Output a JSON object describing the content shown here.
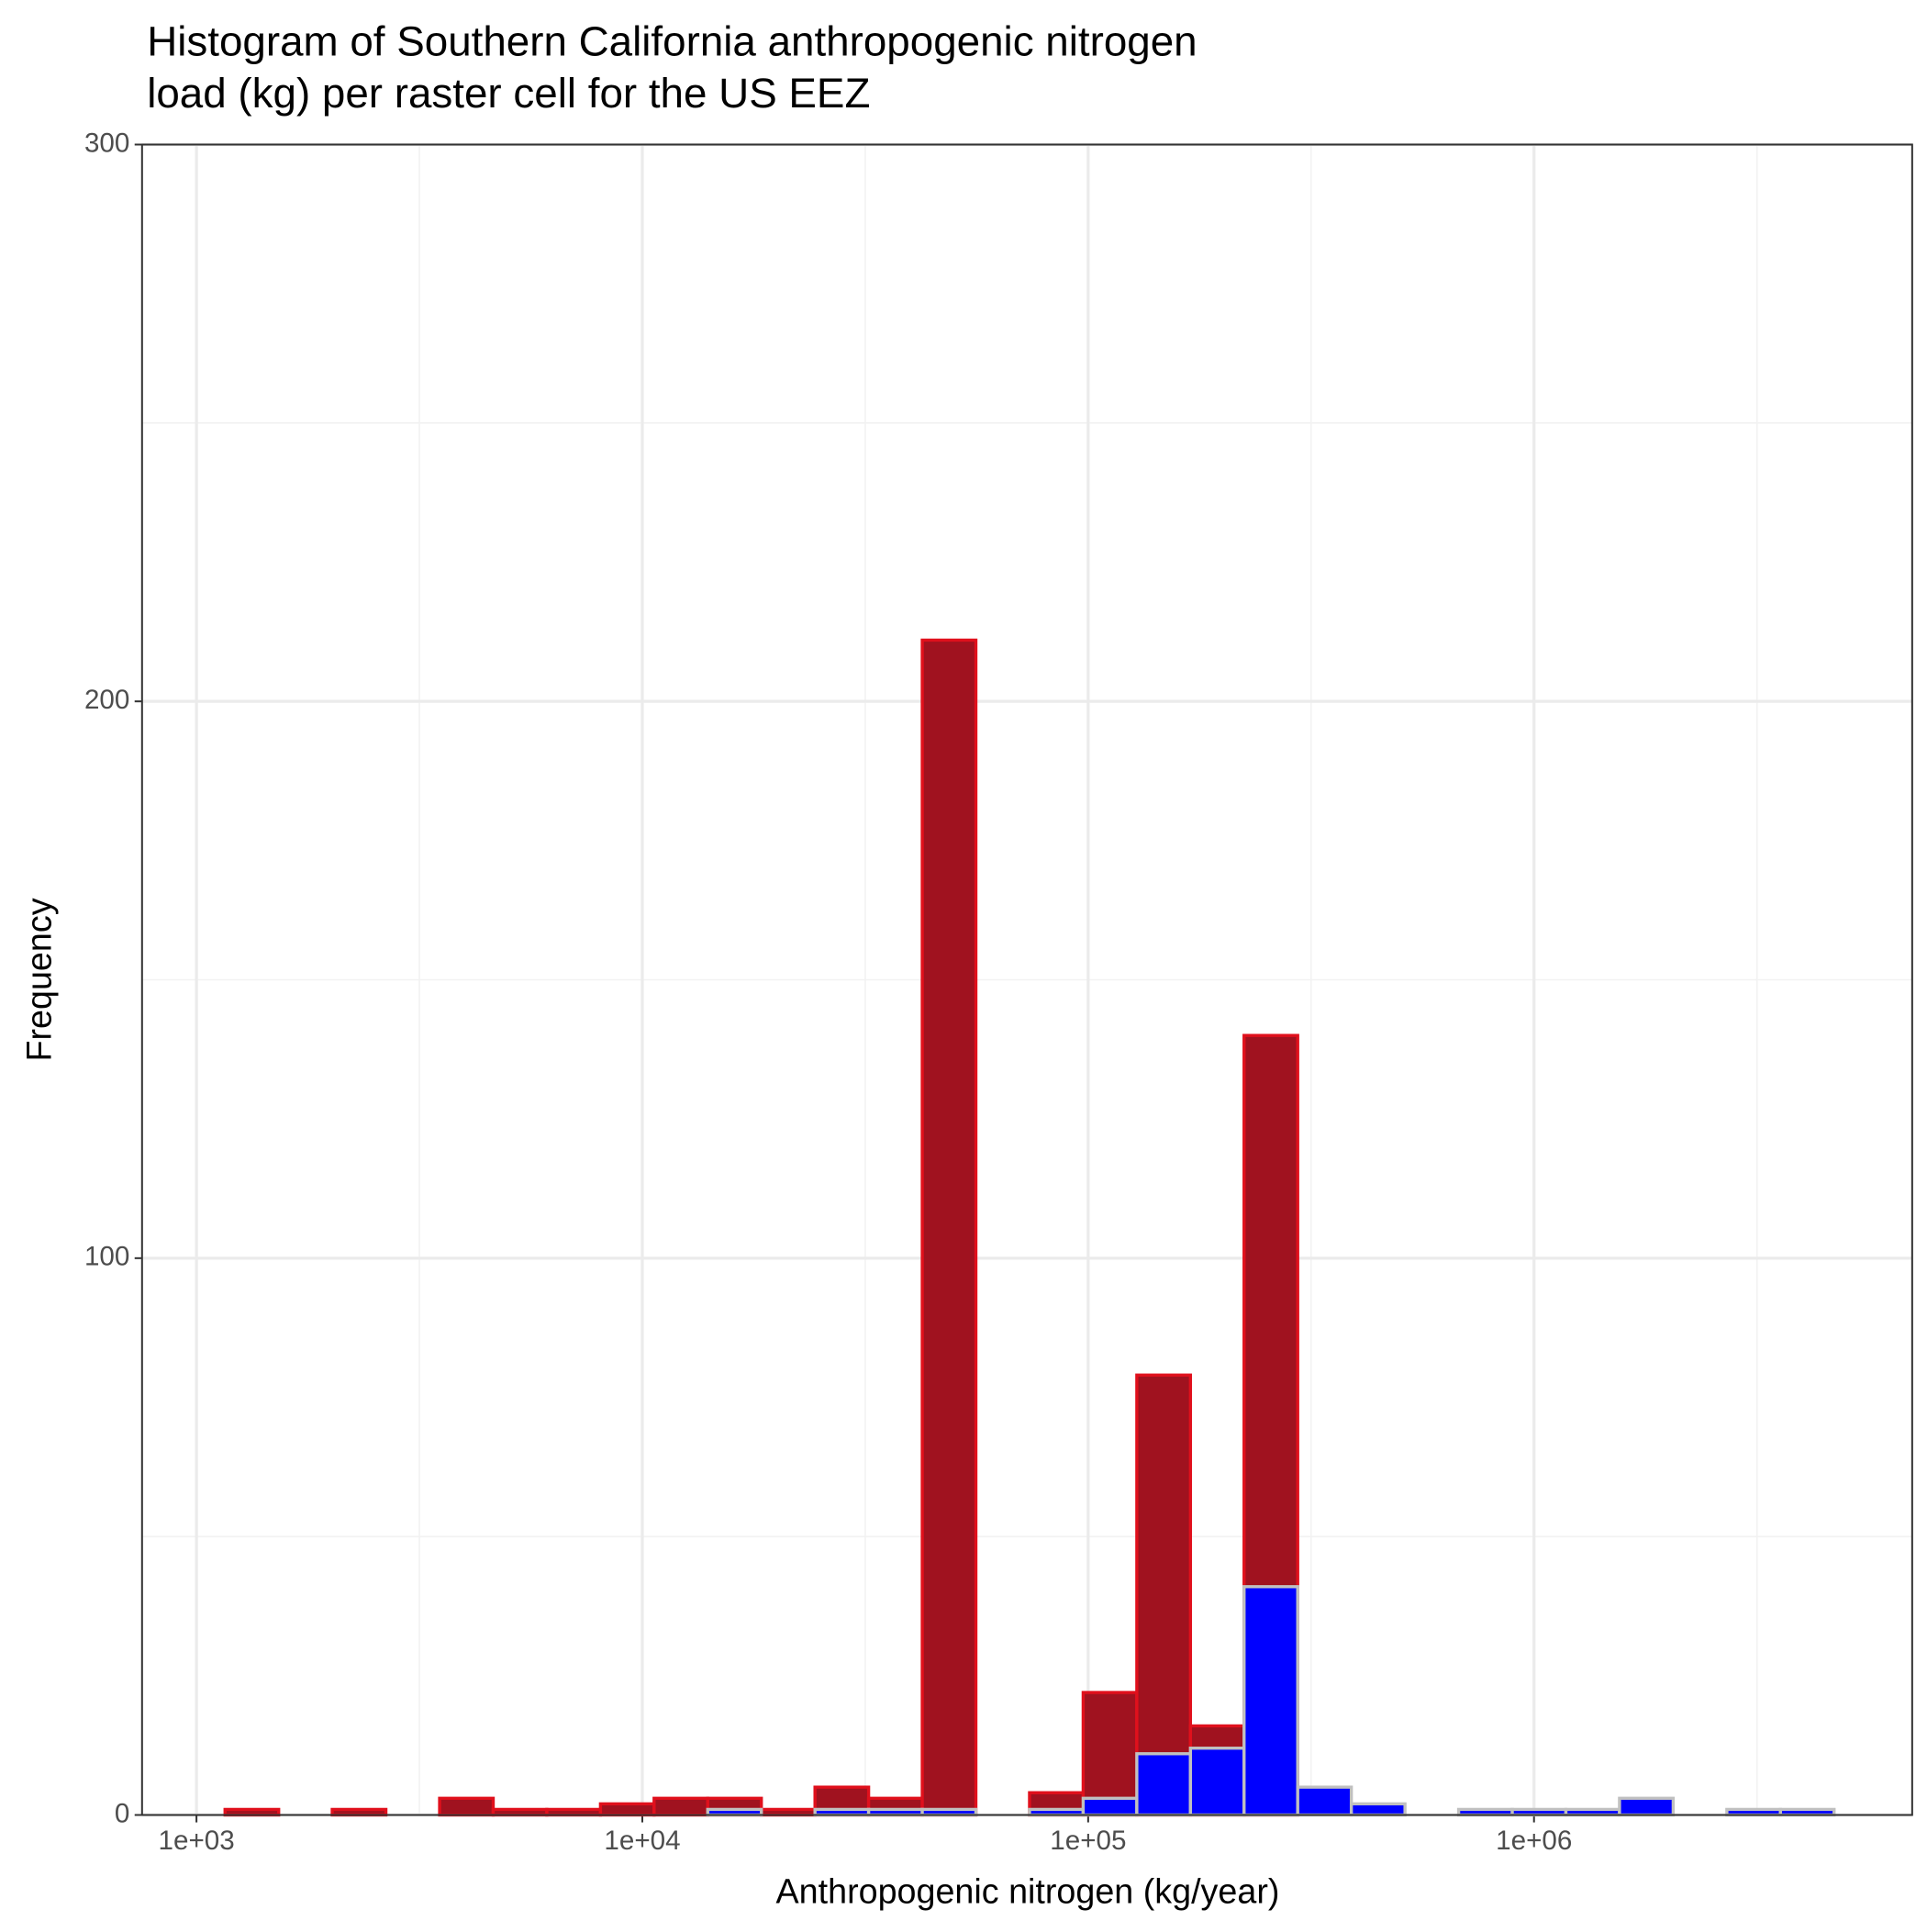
{
  "chart_data": {
    "type": "histogram",
    "title": [
      "Histogram of Southern California anthropogenic nitrogen",
      "load (kg) per raster cell for the US EEZ"
    ],
    "x_label": "Anthropogenic nitrogen (kg/year)",
    "y_label": "Frequency",
    "log_x": true,
    "grid": true,
    "bins": [
      1159,
      1529,
      2016,
      2660,
      3510,
      4630,
      6107,
      8056,
      10627,
      14019,
      18493,
      24395,
      32180,
      42451,
      56000,
      73870,
      97455,
      128560,
      169590,
      223700,
      295120,
      389300,
      513600,
      677500,
      893800,
      1179000,
      1555000,
      2052000,
      2707000,
      3571000,
      4710000
    ],
    "series": [
      {
        "color": "#a0121f",
        "outline": "#e0101c",
        "values": [
          1,
          0,
          1,
          0,
          3,
          1,
          1,
          2,
          3,
          3,
          1,
          5,
          3,
          211,
          0,
          4,
          22,
          79,
          16,
          140,
          0,
          0,
          0,
          0,
          0,
          0,
          0,
          0,
          0,
          0
        ]
      },
      {
        "color": "#0000ff",
        "outline": "#c0c0c0",
        "values": [
          0,
          0,
          0,
          0,
          0,
          0,
          0,
          0,
          0,
          1,
          0,
          1,
          1,
          1,
          0,
          1,
          3,
          11,
          12,
          41,
          5,
          2,
          0,
          1,
          1,
          1,
          3,
          0,
          1,
          1
        ]
      }
    ],
    "xlim": [
      755,
      7050000
    ],
    "xticks": [
      {
        "value": 1000,
        "label": "1e+03"
      },
      {
        "value": 10000,
        "label": "1e+04"
      },
      {
        "value": 100000,
        "label": "1e+05"
      },
      {
        "value": 1000000,
        "label": "1e+06"
      }
    ],
    "ylim": [
      0,
      300
    ],
    "yticks": [
      0,
      100,
      200,
      300
    ]
  }
}
